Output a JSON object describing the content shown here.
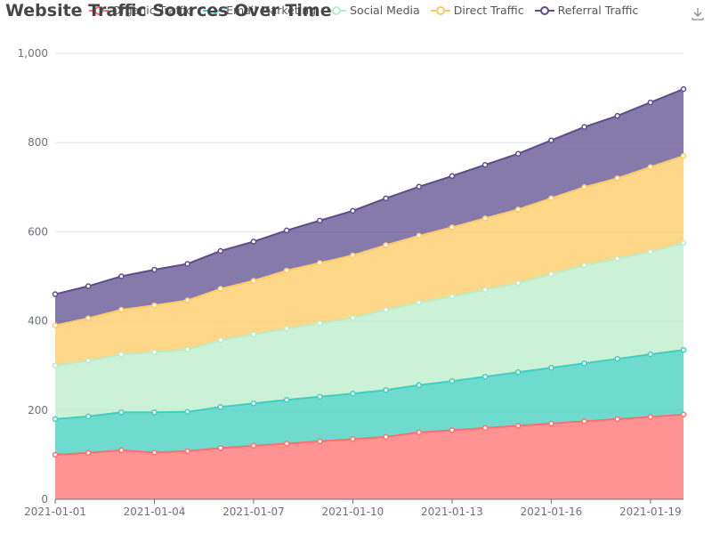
{
  "chart_data": {
    "type": "area",
    "title": "Website Traffic Sources Over Time",
    "stacked": true,
    "x": [
      "2021-01-01",
      "2021-01-02",
      "2021-01-03",
      "2021-01-04",
      "2021-01-05",
      "2021-01-06",
      "2021-01-07",
      "2021-01-08",
      "2021-01-09",
      "2021-01-10",
      "2021-01-11",
      "2021-01-12",
      "2021-01-13",
      "2021-01-14",
      "2021-01-15",
      "2021-01-16",
      "2021-01-17",
      "2021-01-18",
      "2021-01-19",
      "2021-01-20"
    ],
    "x_tick_labels": [
      "2021-01-01",
      "2021-01-04",
      "2021-01-07",
      "2021-01-10",
      "2021-01-13",
      "2021-01-16",
      "2021-01-19"
    ],
    "y_tick_labels": [
      "0",
      "200",
      "400",
      "600",
      "800",
      "1,000"
    ],
    "ylim": [
      0,
      1000
    ],
    "grid": true,
    "legend_position": "top",
    "series": [
      {
        "name": "Organic Traffic",
        "color": "#ff6f6f",
        "values": [
          100,
          104,
          110,
          105,
          108,
          115,
          120,
          125,
          130,
          135,
          140,
          150,
          155,
          160,
          165,
          170,
          175,
          180,
          185,
          190
        ]
      },
      {
        "name": "Email Marketing",
        "color": "#3fcfbf",
        "values": [
          80,
          82,
          85,
          90,
          88,
          92,
          95,
          98,
          100,
          102,
          105,
          106,
          110,
          115,
          120,
          125,
          130,
          135,
          140,
          145
        ]
      },
      {
        "name": "Social Media",
        "color": "#b9ecc8",
        "values": [
          120,
          125,
          130,
          135,
          140,
          150,
          155,
          160,
          165,
          170,
          180,
          185,
          190,
          195,
          200,
          210,
          220,
          225,
          230,
          240
        ]
      },
      {
        "name": "Direct Traffic",
        "color": "#ffca62",
        "values": [
          90,
          95,
          100,
          105,
          110,
          115,
          120,
          130,
          135,
          140,
          145,
          150,
          155,
          160,
          165,
          170,
          175,
          180,
          190,
          195
        ]
      },
      {
        "name": "Referral Traffic",
        "color": "#5e4d8e",
        "values": [
          70,
          72,
          75,
          80,
          82,
          85,
          88,
          90,
          95,
          100,
          105,
          110,
          115,
          120,
          125,
          130,
          135,
          140,
          145,
          150
        ]
      }
    ]
  },
  "icons": {
    "download": "download-icon"
  }
}
